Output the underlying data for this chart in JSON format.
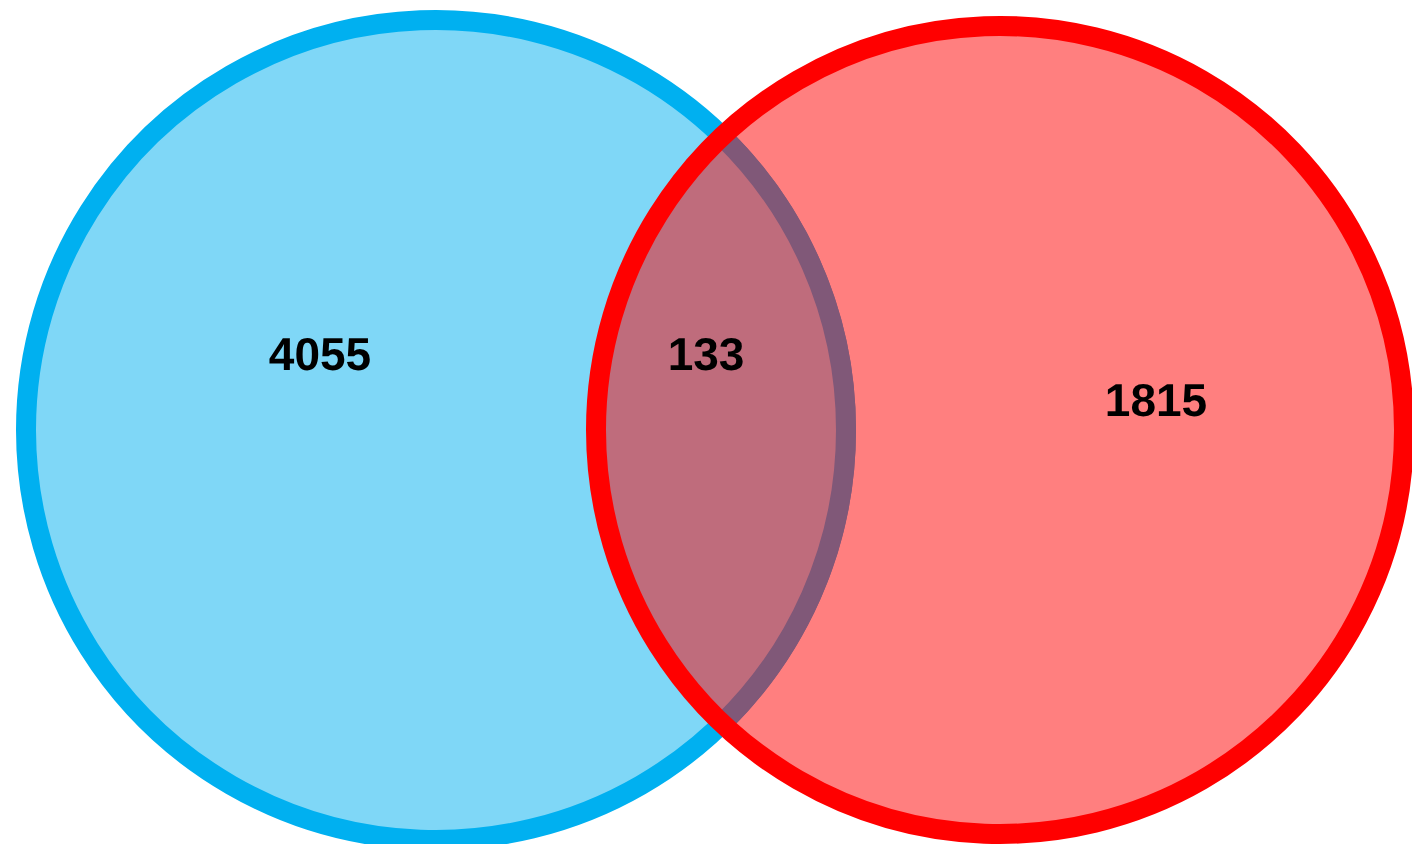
{
  "chart_data": {
    "type": "other",
    "values": [
      4055,
      133,
      1815
    ],
    "colors": [
      "#00b0f0",
      "#bf6c7c",
      "#ff0000"
    ],
    "data_labels": true
  }
}
